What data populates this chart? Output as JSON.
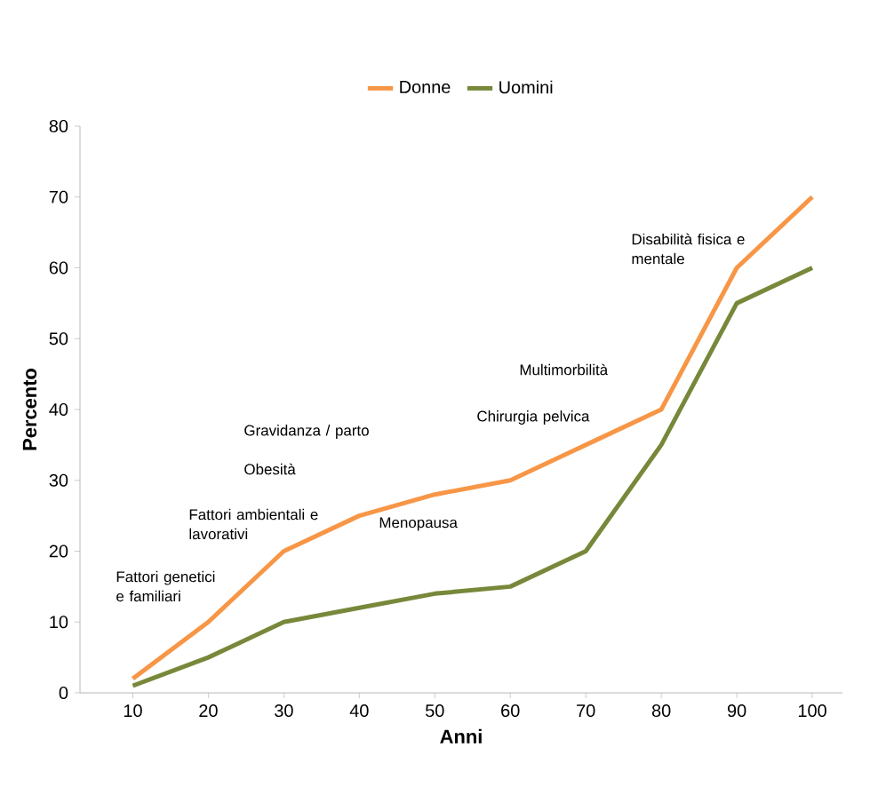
{
  "chart_data": {
    "type": "line",
    "xlabel": "Anni",
    "ylabel": "Percento",
    "x": [
      10,
      20,
      30,
      40,
      50,
      60,
      70,
      80,
      90,
      100
    ],
    "series": [
      {
        "name": "Donne",
        "color": "#f79646",
        "values": [
          2,
          10,
          20,
          25,
          28,
          30,
          35,
          40,
          60,
          70
        ]
      },
      {
        "name": "Uomini",
        "color": "#77883a",
        "values": [
          1,
          5,
          10,
          12,
          14,
          15,
          20,
          35,
          55,
          60
        ]
      }
    ],
    "xlim": [
      3,
      104
    ],
    "ylim": [
      0,
      80
    ],
    "xticks": [
      10,
      20,
      30,
      40,
      50,
      60,
      70,
      80,
      90,
      100
    ],
    "yticks": [
      0,
      10,
      20,
      30,
      40,
      50,
      60,
      70,
      80
    ],
    "legend": "top",
    "grid": false,
    "marker": "none",
    "line_style": "solid",
    "annotations": [
      "Fattori genetici e familiari",
      "Fattori ambientali e lavorativi",
      "Obesità",
      "Gravidanza / parto",
      "Menopausa",
      "Chirurgia pelvica",
      "Multimorbilità",
      "Disabilità fisica e mentale"
    ]
  }
}
